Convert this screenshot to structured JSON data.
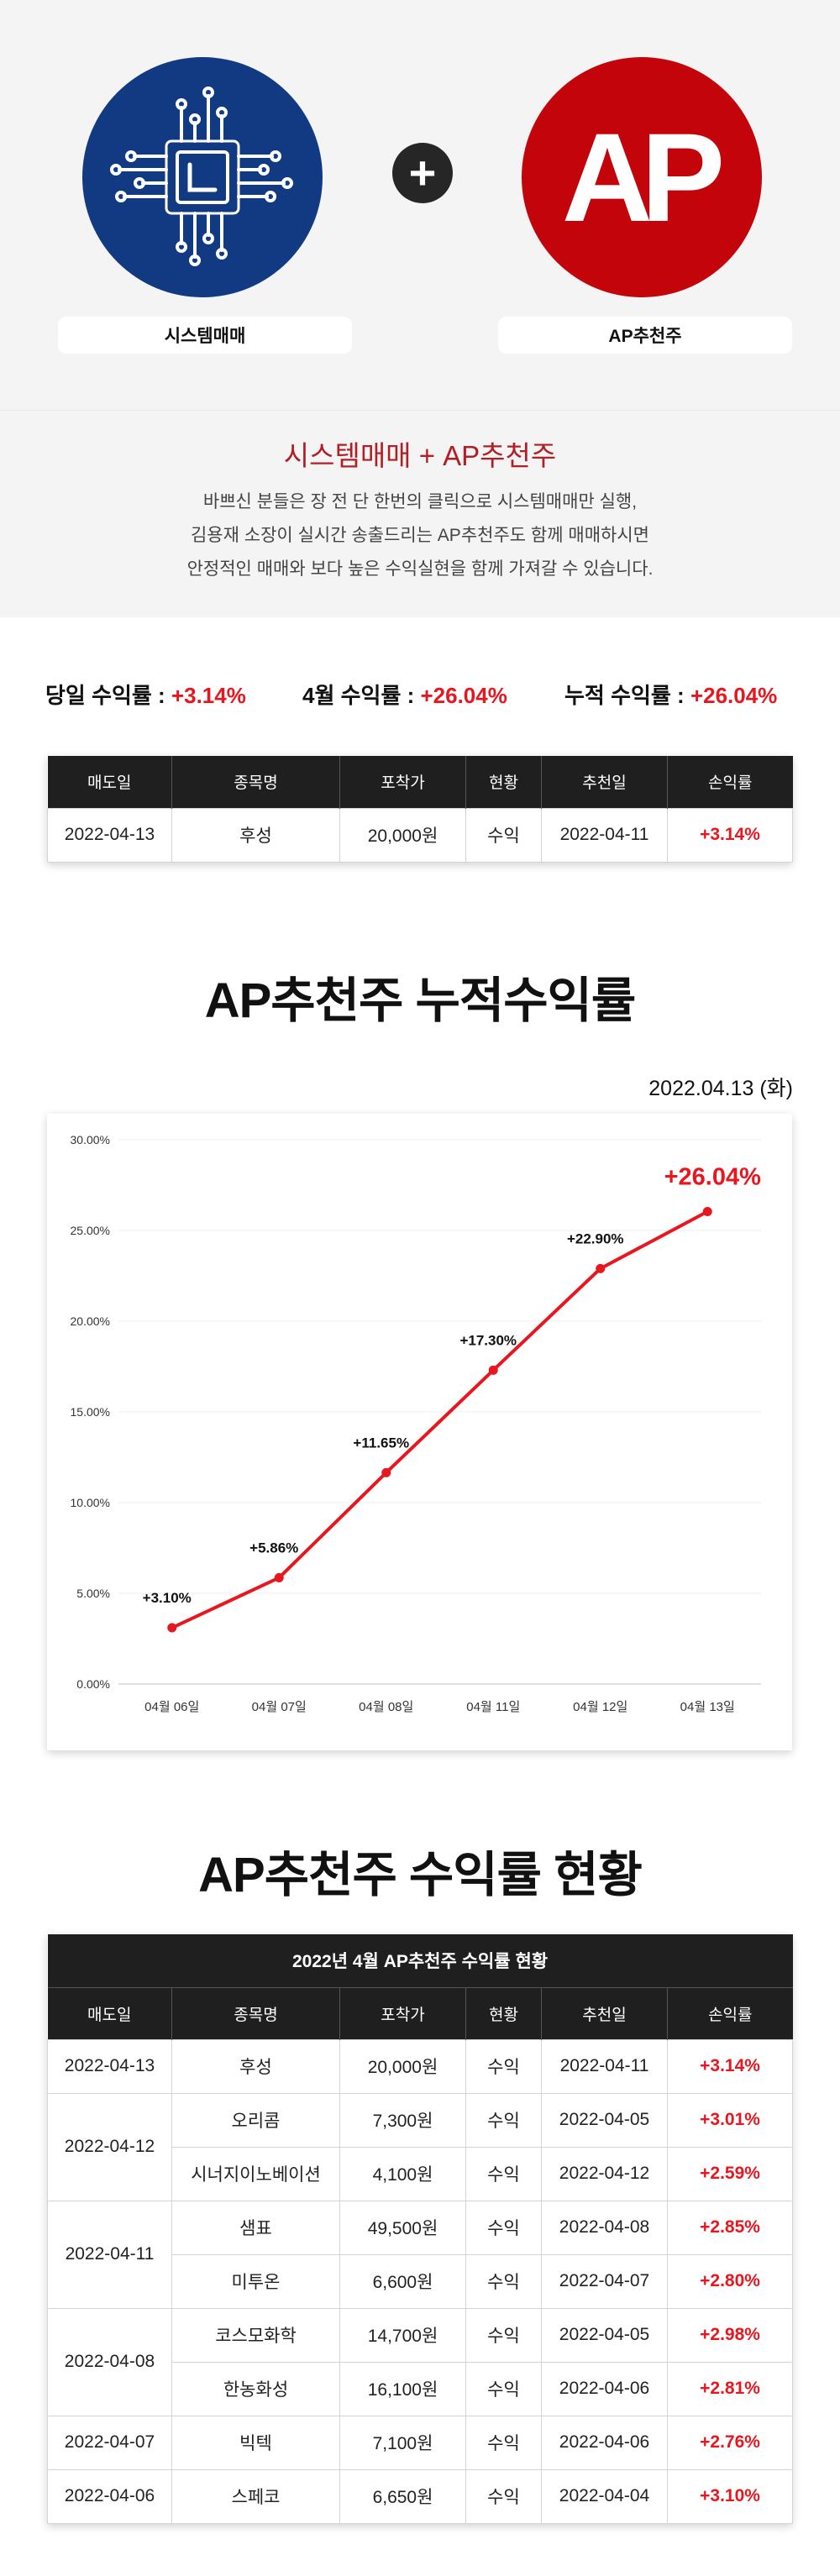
{
  "hero": {
    "pill_system": "시스템매매",
    "pill_ap": "AP추천주",
    "logo_text": "AP",
    "plus": "+",
    "title": "시스템매매 + AP추천주",
    "desc_lines": [
      "바쁘신 분들은 장 전 단 한번의 클릭으로 시스템매매만 실행,",
      "김용재 소장이 실시간 송출드리는 AP추천주도 함께 매매하시면",
      "안정적인 매매와 보다 높은 수익실현을 함께 가져갈 수 있습니다."
    ],
    "colors": {
      "system": "#123a82",
      "ap": "#c3040b",
      "title": "#b11f24"
    }
  },
  "stats": {
    "today_label": "당일 수익률 : ",
    "today_value": "+3.14%",
    "month_label": "4월 수익률 : ",
    "month_value": "+26.04%",
    "total_label": "누적 수익률 : ",
    "total_value": "+26.04%"
  },
  "columns": [
    "매도일",
    "종목명",
    "포착가",
    "현황",
    "추천일",
    "손익률"
  ],
  "today_row": {
    "sell_date": "2022-04-13",
    "name": "후성",
    "price": "20,000원",
    "status": "수익",
    "rec_date": "2022-04-11",
    "pct": "+3.14%"
  },
  "chart_section": {
    "title": "AP추천주 누적수익률",
    "date": "2022.04.13 (화)"
  },
  "chart_data": {
    "type": "line",
    "categories": [
      "04월 06일",
      "04월 07일",
      "04월 08일",
      "04월 11일",
      "04월 12일",
      "04월 13일"
    ],
    "values": [
      3.1,
      5.86,
      11.65,
      17.3,
      22.9,
      26.04
    ],
    "data_labels": [
      "+3.10%",
      "+5.86%",
      "+11.65%",
      "+17.30%",
      "+22.90%",
      "+26.04%"
    ],
    "y_ticks": [
      "0.00%",
      "5.00%",
      "10.00%",
      "15.00%",
      "20.00%",
      "25.00%",
      "30.00%"
    ],
    "ylim": [
      0,
      30
    ],
    "grid": true,
    "line_color": "#e8161e"
  },
  "table_section": {
    "title": "AP추천주 수익률 현황",
    "caption": "2022년 4월 AP추천주 수익률 현황",
    "groups": [
      {
        "sell_date": "2022-04-13",
        "rows": [
          {
            "name": "후성",
            "price": "20,000원",
            "status": "수익",
            "rec_date": "2022-04-11",
            "pct": "+3.14%"
          }
        ]
      },
      {
        "sell_date": "2022-04-12",
        "rows": [
          {
            "name": "오리콤",
            "price": "7,300원",
            "status": "수익",
            "rec_date": "2022-04-05",
            "pct": "+3.01%"
          },
          {
            "name": "시너지이노베이션",
            "price": "4,100원",
            "status": "수익",
            "rec_date": "2022-04-12",
            "pct": "+2.59%"
          }
        ]
      },
      {
        "sell_date": "2022-04-11",
        "rows": [
          {
            "name": "샘표",
            "price": "49,500원",
            "status": "수익",
            "rec_date": "2022-04-08",
            "pct": "+2.85%"
          },
          {
            "name": "미투온",
            "price": "6,600원",
            "status": "수익",
            "rec_date": "2022-04-07",
            "pct": "+2.80%"
          }
        ]
      },
      {
        "sell_date": "2022-04-08",
        "rows": [
          {
            "name": "코스모화학",
            "price": "14,700원",
            "status": "수익",
            "rec_date": "2022-04-05",
            "pct": "+2.98%"
          },
          {
            "name": "한농화성",
            "price": "16,100원",
            "status": "수익",
            "rec_date": "2022-04-06",
            "pct": "+2.81%"
          }
        ]
      },
      {
        "sell_date": "2022-04-07",
        "rows": [
          {
            "name": "빅텍",
            "price": "7,100원",
            "status": "수익",
            "rec_date": "2022-04-06",
            "pct": "+2.76%"
          }
        ]
      },
      {
        "sell_date": "2022-04-06",
        "rows": [
          {
            "name": "스페코",
            "price": "6,650원",
            "status": "수익",
            "rec_date": "2022-04-04",
            "pct": "+3.10%"
          }
        ]
      }
    ]
  }
}
